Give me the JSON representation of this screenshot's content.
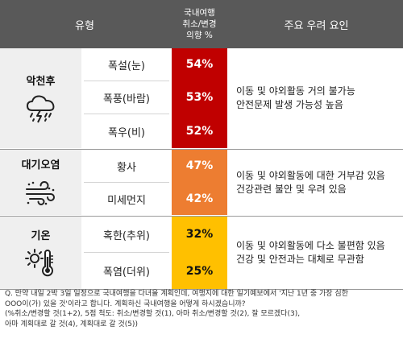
{
  "header": {
    "type_label": "유형",
    "pct_label_line1": "국내여행",
    "pct_label_line2": "취소/변경",
    "pct_label_line3": "의향 %",
    "factor_label": "주요 우려 요인"
  },
  "groups": [
    {
      "name": "악천후",
      "icon": "storm-cloud-icon",
      "factor_line1": "이동 및 야외활동 거의 불가능",
      "factor_line2": "안전문제 발생 가능성 높음"
    },
    {
      "name": "대기오염",
      "icon": "dust-wind-icon",
      "factor_line1": "이동 및 야외활동에 대한 거부감 있음",
      "factor_line2": "건강관련 불안 및 우려 있음"
    },
    {
      "name": "기온",
      "icon": "thermometer-sun-icon",
      "factor_line1": "이동 및 야외활동에 다소 불편함 있음",
      "factor_line2": "건강 및 안전과는 대체로 무관함"
    }
  ],
  "colors": {
    "header_bg": "#595959",
    "severe": "#c00000",
    "pollution": "#ed7d31",
    "temperature": "#ffc000",
    "group_bg": "#efefef"
  },
  "chart_data": {
    "type": "table",
    "columns": [
      "유형",
      "국내여행 취소/변경 의향 %",
      "주요 우려 요인"
    ],
    "rows": [
      {
        "group": "악천후",
        "item": "폭설(눈)",
        "value": 54,
        "label": "54%"
      },
      {
        "group": "악천후",
        "item": "폭풍(바람)",
        "value": 53,
        "label": "53%"
      },
      {
        "group": "악천후",
        "item": "폭우(비)",
        "value": 52,
        "label": "52%"
      },
      {
        "group": "대기오염",
        "item": "황사",
        "value": 47,
        "label": "47%"
      },
      {
        "group": "대기오염",
        "item": "미세먼지",
        "value": 42,
        "label": "42%"
      },
      {
        "group": "기온",
        "item": "혹한(추위)",
        "value": 32,
        "label": "32%"
      },
      {
        "group": "기온",
        "item": "폭염(더위)",
        "value": 25,
        "label": "25%"
      }
    ]
  },
  "footnote": {
    "line1": "Q. 만약 내일 2박 3일 일정으로 국내여행을 다녀올 계획인데, 여행지에 대한 일기예보에서 '지난 1년 중 가장 심한",
    "line2": "OOO이(가) 있을 것'이라고 합니다. 계획하신 국내여행을 어떻게 하시겠습니까?",
    "line3": "(%취소/변경할 것(1+2), 5점 척도: 취소/변경할 것(1), 아마 취소/변경할 것(2), 잘 모르겠다(3),",
    "line4": "아마 계획대로 갈 것(4), 계획대로 갈 것(5))"
  }
}
